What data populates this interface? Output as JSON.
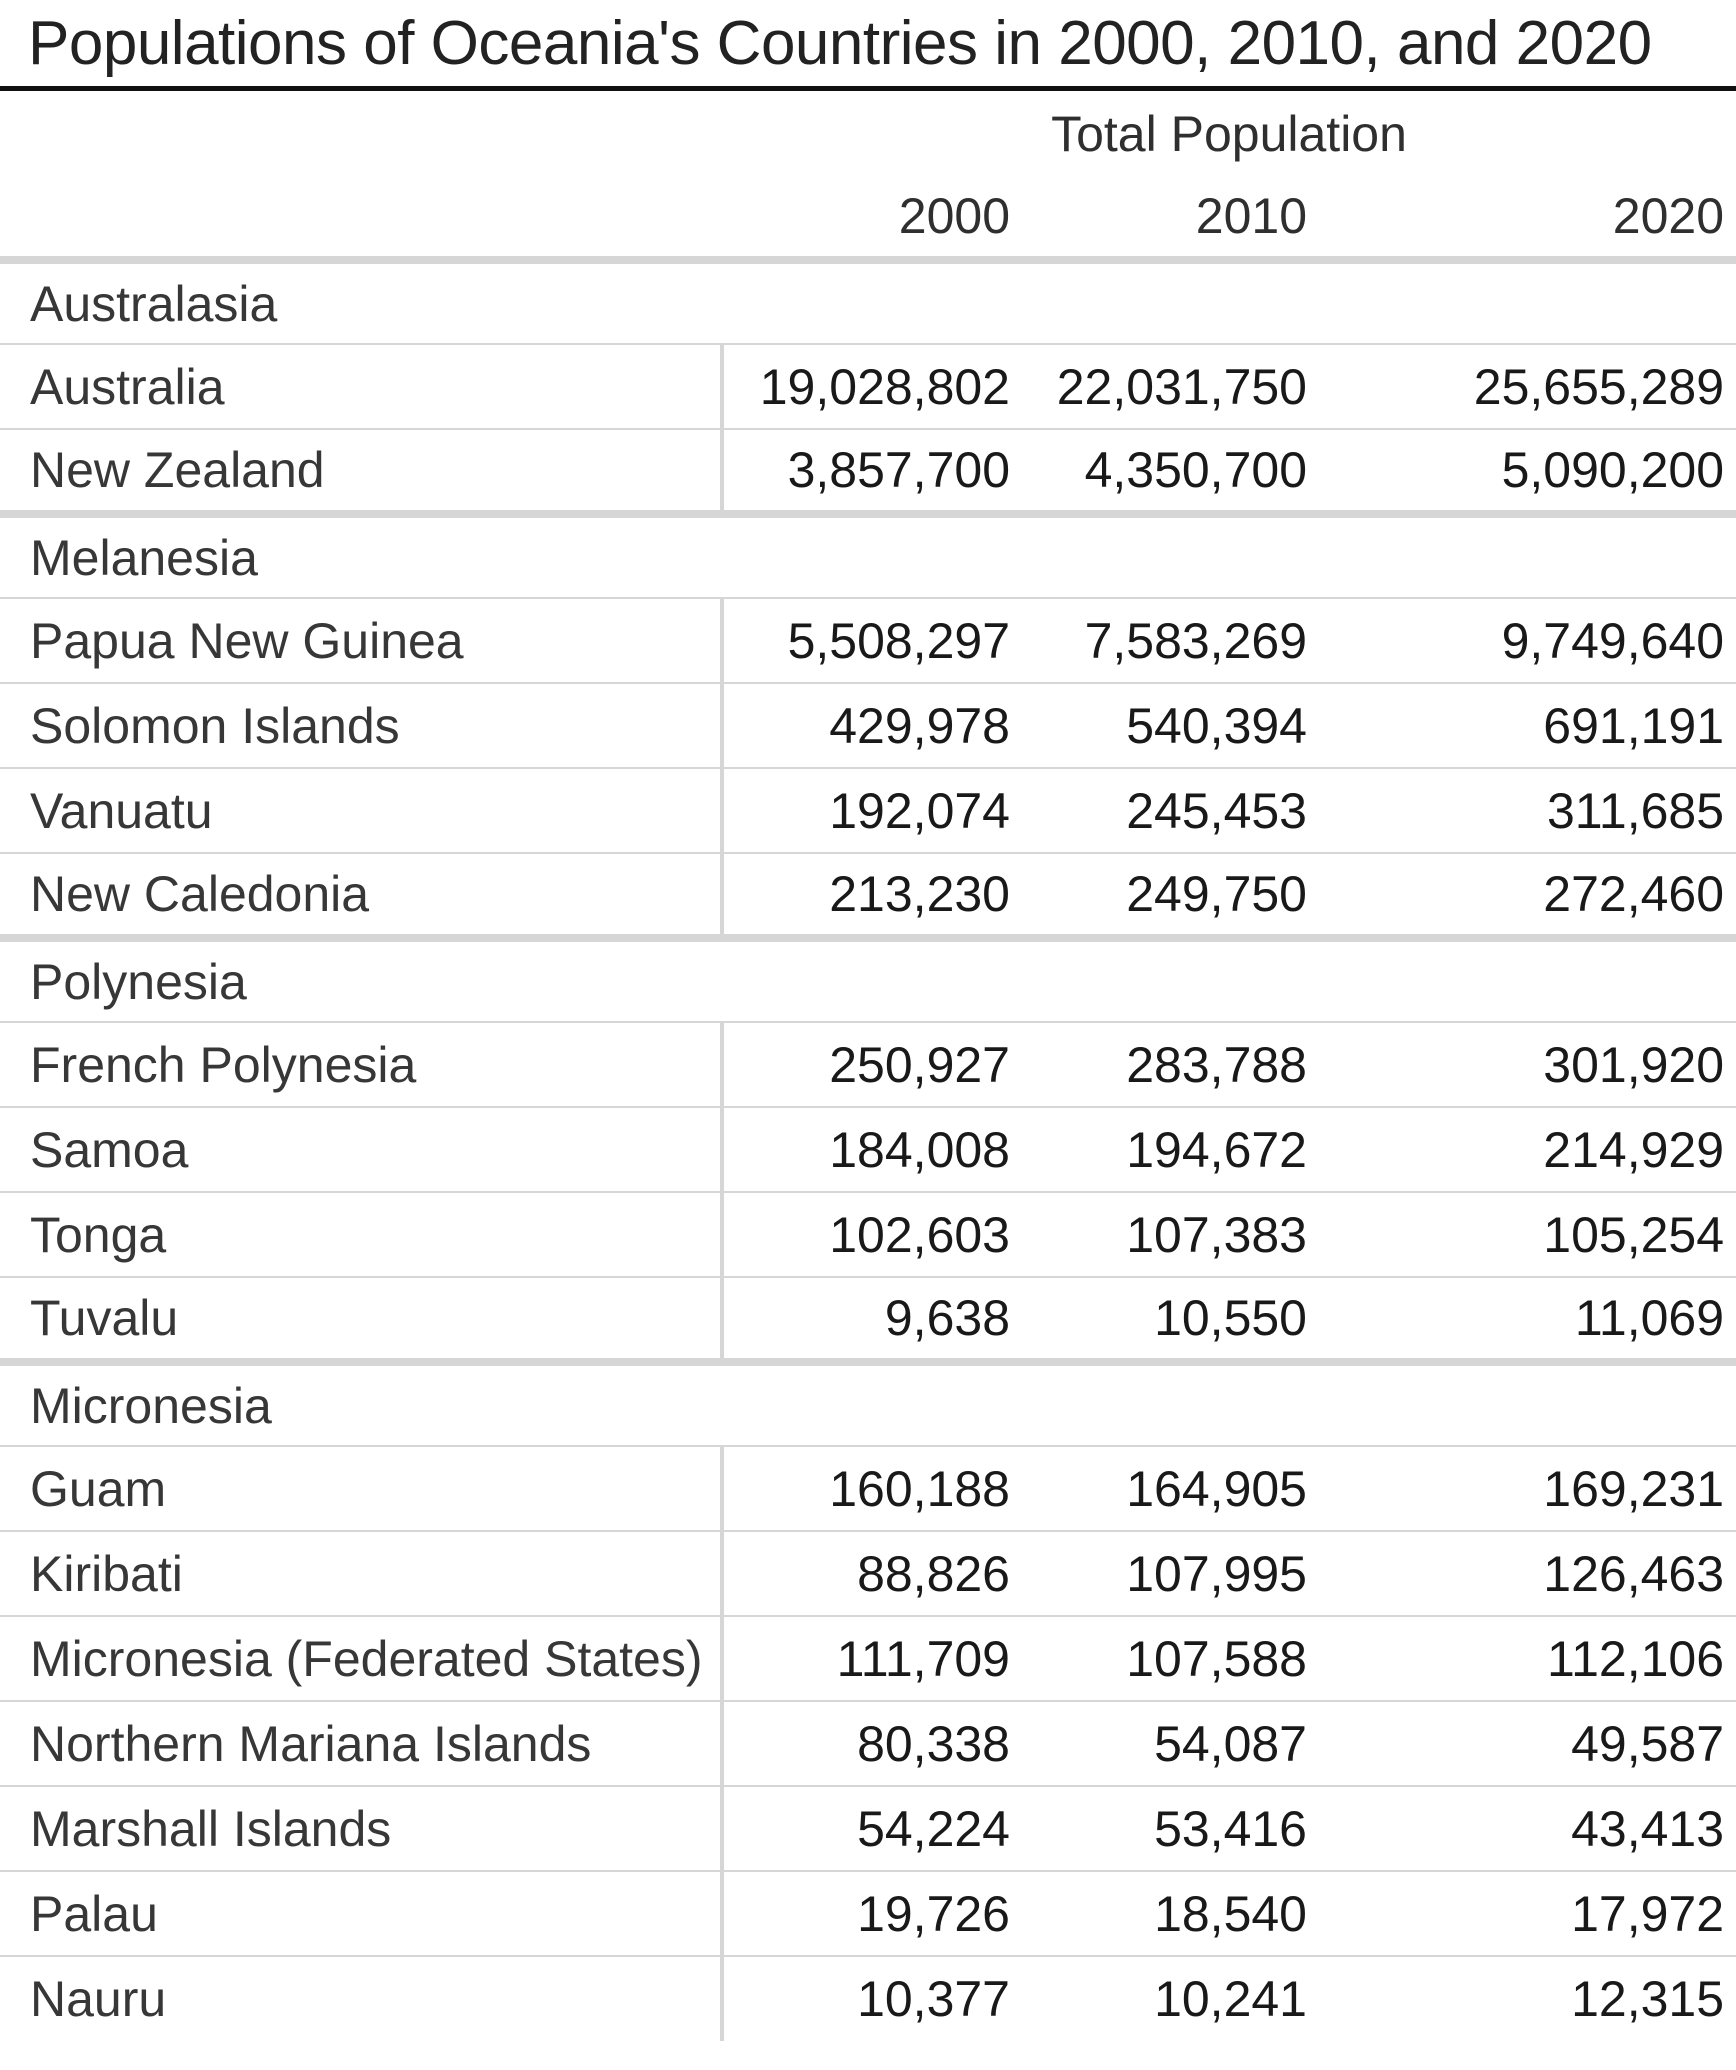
{
  "title": "Populations of Oceania's Countries in 2000, 2010, and 2020",
  "table": {
    "group_header": "Total Population",
    "years": [
      "2000",
      "2010",
      "2020"
    ],
    "sections": [
      {
        "region": "Australasia",
        "rows": [
          {
            "country": "Australia",
            "values": [
              "19,028,802",
              "22,031,750",
              "25,655,289"
            ]
          },
          {
            "country": "New Zealand",
            "values": [
              "3,857,700",
              "4,350,700",
              "5,090,200"
            ]
          }
        ]
      },
      {
        "region": "Melanesia",
        "rows": [
          {
            "country": "Papua New Guinea",
            "values": [
              "5,508,297",
              "7,583,269",
              "9,749,640"
            ]
          },
          {
            "country": "Solomon Islands",
            "values": [
              "429,978",
              "540,394",
              "691,191"
            ]
          },
          {
            "country": "Vanuatu",
            "values": [
              "192,074",
              "245,453",
              "311,685"
            ]
          },
          {
            "country": "New Caledonia",
            "values": [
              "213,230",
              "249,750",
              "272,460"
            ]
          }
        ]
      },
      {
        "region": "Polynesia",
        "rows": [
          {
            "country": "French Polynesia",
            "values": [
              "250,927",
              "283,788",
              "301,920"
            ]
          },
          {
            "country": "Samoa",
            "values": [
              "184,008",
              "194,672",
              "214,929"
            ]
          },
          {
            "country": "Tonga",
            "values": [
              "102,603",
              "107,383",
              "105,254"
            ]
          },
          {
            "country": "Tuvalu",
            "values": [
              "9,638",
              "10,550",
              "11,069"
            ]
          }
        ]
      },
      {
        "region": "Micronesia",
        "rows": [
          {
            "country": "Guam",
            "values": [
              "160,188",
              "164,905",
              "169,231"
            ]
          },
          {
            "country": "Kiribati",
            "values": [
              "88,826",
              "107,995",
              "126,463"
            ]
          },
          {
            "country": "Micronesia (Federated States)",
            "values": [
              "111,709",
              "107,588",
              "112,106"
            ]
          },
          {
            "country": "Northern Mariana Islands",
            "values": [
              "80,338",
              "54,087",
              "49,587"
            ]
          },
          {
            "country": "Marshall Islands",
            "values": [
              "54,224",
              "53,416",
              "43,413"
            ]
          },
          {
            "country": "Palau",
            "values": [
              "19,726",
              "18,540",
              "17,972"
            ]
          },
          {
            "country": "Nauru",
            "values": [
              "10,377",
              "10,241",
              "12,315"
            ]
          }
        ]
      }
    ]
  },
  "colors": {
    "title_rule": "#111111",
    "grid_line": "#d6d6d6",
    "label_text": "#373737",
    "value_text": "#191919"
  },
  "chart_data": {
    "type": "table",
    "title": "Populations of Oceania's Countries in 2000, 2010, and 2020",
    "column_group_label": "Total Population",
    "columns": [
      "2000",
      "2010",
      "2020"
    ],
    "row_groups": [
      {
        "group": "Australasia",
        "rows": [
          {
            "label": "Australia",
            "values": [
              19028802,
              22031750,
              25655289
            ]
          },
          {
            "label": "New Zealand",
            "values": [
              3857700,
              4350700,
              5090200
            ]
          }
        ]
      },
      {
        "group": "Melanesia",
        "rows": [
          {
            "label": "Papua New Guinea",
            "values": [
              5508297,
              7583269,
              9749640
            ]
          },
          {
            "label": "Solomon Islands",
            "values": [
              429978,
              540394,
              691191
            ]
          },
          {
            "label": "Vanuatu",
            "values": [
              192074,
              245453,
              311685
            ]
          },
          {
            "label": "New Caledonia",
            "values": [
              213230,
              249750,
              272460
            ]
          }
        ]
      },
      {
        "group": "Polynesia",
        "rows": [
          {
            "label": "French Polynesia",
            "values": [
              250927,
              283788,
              301920
            ]
          },
          {
            "label": "Samoa",
            "values": [
              184008,
              194672,
              214929
            ]
          },
          {
            "label": "Tonga",
            "values": [
              102603,
              107383,
              105254
            ]
          },
          {
            "label": "Tuvalu",
            "values": [
              9638,
              10550,
              11069
            ]
          }
        ]
      },
      {
        "group": "Micronesia",
        "rows": [
          {
            "label": "Guam",
            "values": [
              160188,
              164905,
              169231
            ]
          },
          {
            "label": "Kiribati",
            "values": [
              88826,
              107995,
              126463
            ]
          },
          {
            "label": "Micronesia (Federated States)",
            "values": [
              111709,
              107588,
              112106
            ]
          },
          {
            "label": "Northern Mariana Islands",
            "values": [
              80338,
              54087,
              49587
            ]
          },
          {
            "label": "Marshall Islands",
            "values": [
              54224,
              53416,
              43413
            ]
          },
          {
            "label": "Palau",
            "values": [
              19726,
              18540,
              17972
            ]
          },
          {
            "label": "Nauru",
            "values": [
              10377,
              10241,
              12315
            ]
          }
        ]
      }
    ]
  }
}
